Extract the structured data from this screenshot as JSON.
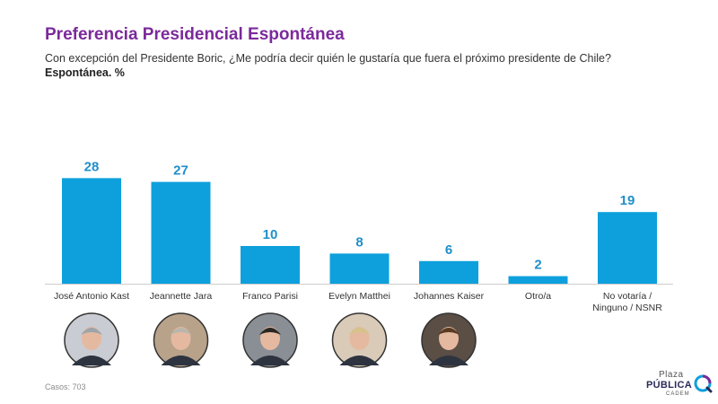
{
  "header": {
    "title": "Preferencia Presidencial Espontánea",
    "subtitle": "Con excepción del Presidente Boric, ¿Me podría decir quién le gustaría que fuera el próximo presidente de Chile?",
    "unit_label": "Espontánea. %"
  },
  "footer": {
    "cases_label": "Casos:",
    "cases_value": "703"
  },
  "logo": {
    "line1": "Plaza",
    "line2": "PÚBLICA",
    "line3": "CADEM"
  },
  "colors": {
    "bar": "#0ea0dc",
    "value_label": "#1f8fc9",
    "title": "#7b2a9a"
  },
  "chart_data": {
    "type": "bar",
    "title": "Preferencia Presidencial Espontánea",
    "xlabel": "",
    "ylabel": "",
    "categories": [
      "José Antonio Kast",
      "Jeannette Jara",
      "Franco Parisi",
      "Evelyn Matthei",
      "Johannes Kaiser",
      "Otro/a",
      "No votaría / Ninguno / NSNR"
    ],
    "values": [
      28,
      27,
      10,
      8,
      6,
      2,
      19
    ],
    "ylim": [
      0,
      30
    ],
    "grid": false,
    "legend": "none"
  },
  "candidates": [
    {
      "name": "José Antonio Kast",
      "avatar": "photo-icon"
    },
    {
      "name": "Jeannette Jara",
      "avatar": "photo-icon"
    },
    {
      "name": "Franco Parisi",
      "avatar": "photo-icon"
    },
    {
      "name": "Evelyn Matthei",
      "avatar": "photo-icon"
    },
    {
      "name": "Johannes Kaiser",
      "avatar": "photo-icon"
    }
  ]
}
